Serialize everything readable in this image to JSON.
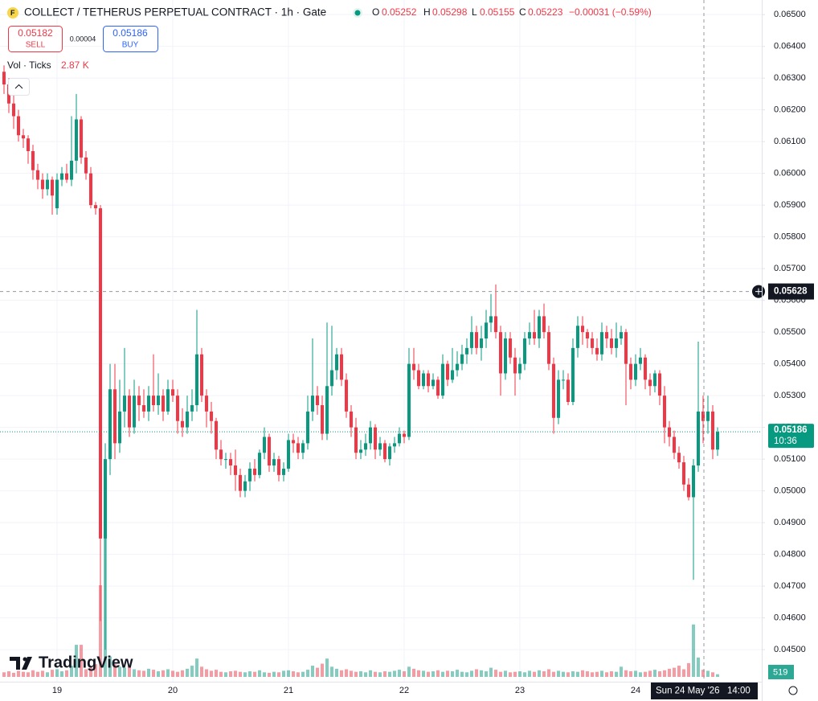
{
  "chart_data": {
    "type": "candlestick",
    "title": "COLLECT / TETHERUS PERPETUAL CONTRACT · 1h · Gate",
    "categories": [
      null,
      null,
      null,
      null,
      null,
      null,
      null,
      null,
      null,
      null,
      null,
      "19",
      null,
      null,
      null,
      null,
      null,
      null,
      null,
      null,
      null,
      null,
      null,
      null,
      null,
      null,
      null,
      null,
      null,
      null,
      null,
      null,
      null,
      null,
      null,
      "20",
      null,
      null,
      null,
      null,
      null,
      null,
      null,
      null,
      null,
      null,
      null,
      null,
      null,
      null,
      null,
      null,
      null,
      null,
      null,
      null,
      null,
      null,
      null,
      "21",
      null,
      null,
      null,
      null,
      null,
      null,
      null,
      null,
      null,
      null,
      null,
      null,
      null,
      null,
      null,
      null,
      null,
      null,
      null,
      null,
      null,
      null,
      null,
      "22",
      null,
      null,
      null,
      null,
      null,
      null,
      null,
      null,
      null,
      null,
      null,
      null,
      null,
      null,
      null,
      null,
      null,
      null,
      null,
      null,
      null,
      null,
      null,
      "23",
      null,
      null,
      null,
      null,
      null,
      null,
      null,
      null,
      null,
      null,
      null,
      null,
      null,
      null,
      null,
      null,
      null,
      null,
      null,
      null,
      null,
      null,
      null,
      "24",
      null,
      null,
      null,
      null,
      null,
      null,
      null,
      null,
      null,
      null,
      null,
      null,
      null,
      null,
      null,
      null,
      null
    ],
    "open": [
      0.0632,
      0.0628,
      0.0622,
      0.0618,
      0.0612,
      0.0611,
      0.0607,
      0.0601,
      0.0598,
      0.0595,
      0.0598,
      0.0589,
      0.0598,
      0.06,
      0.0598,
      0.0604,
      0.0617,
      0.0605,
      0.06,
      0.059,
      0.0589,
      0.0485,
      0.051,
      0.0532,
      0.0515,
      0.0525,
      0.053,
      0.052,
      0.053,
      0.0527,
      0.0525,
      0.053,
      0.0527,
      0.053,
      0.0525,
      0.0532,
      0.053,
      0.0522,
      0.052,
      0.0525,
      0.0527,
      0.0543,
      0.053,
      0.0525,
      0.0522,
      0.0513,
      0.051,
      0.051,
      0.0508,
      0.0505,
      0.05,
      0.0503,
      0.0507,
      0.0505,
      0.0512,
      0.0517,
      0.0508,
      0.051,
      0.0505,
      0.0507,
      0.0516,
      0.0515,
      0.0512,
      0.0515,
      0.0525,
      0.053,
      0.0527,
      0.0518,
      0.0533,
      0.0538,
      0.0543,
      0.0535,
      0.0525,
      0.052,
      0.0512,
      0.0513,
      0.0515,
      0.052,
      0.0513,
      0.0515,
      0.051,
      0.0514,
      0.0515,
      0.0518,
      0.0517,
      0.054,
      0.0538,
      0.0533,
      0.0537,
      0.0533,
      0.0535,
      0.053,
      0.054,
      0.0535,
      0.0538,
      0.054,
      0.0543,
      0.0545,
      0.055,
      0.0545,
      0.0548,
      0.0553,
      0.0555,
      0.055,
      0.0537,
      0.0548,
      0.0542,
      0.0537,
      0.054,
      0.0548,
      0.055,
      0.0548,
      0.0555,
      0.055,
      0.054,
      0.0523,
      0.0535,
      0.0535,
      0.0528,
      0.0545,
      0.0552,
      0.055,
      0.0548,
      0.0545,
      0.0543,
      0.055,
      0.0548,
      0.0545,
      0.0548,
      0.055,
      0.054,
      0.0535,
      0.054,
      0.0542,
      0.0535,
      0.0533,
      0.0537,
      0.053,
      0.052,
      0.0517,
      0.0512,
      0.0509,
      0.0502,
      0.0498,
      0.0508,
      0.0525,
      0.0522,
      0.0525,
      0.0513
    ],
    "high": [
      0.0634,
      0.063,
      0.0625,
      0.062,
      0.0614,
      0.0612,
      0.0609,
      0.0603,
      0.06,
      0.06,
      0.0599,
      0.06,
      0.0602,
      0.0603,
      0.0618,
      0.0625,
      0.0618,
      0.0607,
      0.0602,
      0.0591,
      0.059,
      0.0515,
      0.054,
      0.054,
      0.0535,
      0.0545,
      0.0532,
      0.0535,
      0.0533,
      0.0532,
      0.0533,
      0.0543,
      0.0537,
      0.0532,
      0.0535,
      0.0535,
      0.0532,
      0.0526,
      0.053,
      0.0532,
      0.0557,
      0.0545,
      0.0532,
      0.0528,
      0.0523,
      0.0516,
      0.0512,
      0.0512,
      0.0513,
      0.0507,
      0.0505,
      0.0509,
      0.051,
      0.0513,
      0.052,
      0.0518,
      0.0512,
      0.0511,
      0.0509,
      0.0518,
      0.0518,
      0.0517,
      0.0516,
      0.053,
      0.0548,
      0.0533,
      0.053,
      0.0553,
      0.0552,
      0.0545,
      0.0545,
      0.0537,
      0.0527,
      0.0523,
      0.0516,
      0.0518,
      0.0522,
      0.0521,
      0.0517,
      0.0516,
      0.0515,
      0.0517,
      0.052,
      0.0519,
      0.0545,
      0.0545,
      0.054,
      0.0538,
      0.0538,
      0.0537,
      0.0536,
      0.0543,
      0.0541,
      0.0545,
      0.0544,
      0.0546,
      0.0548,
      0.0555,
      0.0552,
      0.0552,
      0.0557,
      0.0562,
      0.0565,
      0.0552,
      0.055,
      0.055,
      0.0545,
      0.0542,
      0.055,
      0.0553,
      0.0557,
      0.0557,
      0.0559,
      0.0552,
      0.0542,
      0.0538,
      0.0538,
      0.0537,
      0.0548,
      0.0555,
      0.0555,
      0.0551,
      0.055,
      0.0548,
      0.0553,
      0.0552,
      0.0551,
      0.0553,
      0.0552,
      0.0551,
      0.0542,
      0.0543,
      0.0545,
      0.0543,
      0.0537,
      0.0538,
      0.0538,
      0.0533,
      0.0522,
      0.0519,
      0.0514,
      0.0511,
      0.0504,
      0.051,
      0.0547,
      0.053,
      0.053,
      0.0527,
      0.052
    ],
    "low": [
      0.0625,
      0.0619,
      0.0614,
      0.061,
      0.0608,
      0.0603,
      0.0598,
      0.0595,
      0.0592,
      0.0593,
      0.0587,
      0.0587,
      0.0596,
      0.0597,
      0.0596,
      0.06,
      0.0603,
      0.0598,
      0.0589,
      0.0587,
      0.0459,
      0.045,
      0.0505,
      0.051,
      0.0512,
      0.052,
      0.0517,
      0.0518,
      0.0522,
      0.0523,
      0.0522,
      0.0525,
      0.0524,
      0.0522,
      0.0524,
      0.0528,
      0.0518,
      0.0517,
      0.0518,
      0.0522,
      0.0525,
      0.0528,
      0.052,
      0.0518,
      0.051,
      0.0508,
      0.0507,
      0.0505,
      0.05,
      0.0498,
      0.0498,
      0.05,
      0.0503,
      0.0504,
      0.051,
      0.0506,
      0.0506,
      0.0503,
      0.0503,
      0.0506,
      0.0512,
      0.051,
      0.051,
      0.0513,
      0.0522,
      0.0524,
      0.0516,
      0.0516,
      0.053,
      0.0535,
      0.0533,
      0.0523,
      0.0517,
      0.051,
      0.051,
      0.0511,
      0.0513,
      0.051,
      0.0511,
      0.0509,
      0.0508,
      0.0512,
      0.0514,
      0.0515,
      0.0516,
      0.0535,
      0.0532,
      0.0532,
      0.0531,
      0.0532,
      0.0529,
      0.0529,
      0.0533,
      0.0534,
      0.0536,
      0.0538,
      0.054,
      0.0543,
      0.0543,
      0.0541,
      0.0545,
      0.055,
      0.0548,
      0.053,
      0.0535,
      0.054,
      0.053,
      0.0535,
      0.0538,
      0.0546,
      0.0546,
      0.0545,
      0.0548,
      0.0538,
      0.0518,
      0.0521,
      0.0532,
      0.0527,
      0.0527,
      0.0542,
      0.0546,
      0.0545,
      0.0543,
      0.0541,
      0.0541,
      0.0545,
      0.0543,
      0.0542,
      0.0546,
      0.0527,
      0.0532,
      0.0533,
      0.0538,
      0.0532,
      0.053,
      0.0531,
      0.0527,
      0.0515,
      0.0514,
      0.051,
      0.0507,
      0.05,
      0.0497,
      0.0472,
      0.0506,
      0.0515,
      0.0518,
      0.051,
      0.0511
    ],
    "close": [
      0.0628,
      0.0622,
      0.0618,
      0.0612,
      0.0611,
      0.0607,
      0.0601,
      0.0598,
      0.0595,
      0.0598,
      0.0593,
      0.0598,
      0.06,
      0.0598,
      0.0604,
      0.0617,
      0.0605,
      0.06,
      0.059,
      0.0589,
      0.0485,
      0.051,
      0.0532,
      0.0515,
      0.0525,
      0.053,
      0.052,
      0.053,
      0.0527,
      0.0525,
      0.053,
      0.0527,
      0.053,
      0.0525,
      0.0532,
      0.053,
      0.0522,
      0.052,
      0.0525,
      0.0527,
      0.0543,
      0.053,
      0.0525,
      0.0522,
      0.0513,
      0.051,
      0.051,
      0.0508,
      0.0505,
      0.05,
      0.0503,
      0.0507,
      0.0505,
      0.0512,
      0.0517,
      0.0508,
      0.051,
      0.0505,
      0.0507,
      0.0516,
      0.0515,
      0.0512,
      0.0515,
      0.0525,
      0.053,
      0.0527,
      0.0518,
      0.0533,
      0.0538,
      0.0543,
      0.0535,
      0.0525,
      0.052,
      0.0512,
      0.0513,
      0.0515,
      0.052,
      0.0513,
      0.0515,
      0.051,
      0.0514,
      0.0515,
      0.0518,
      0.0517,
      0.054,
      0.0538,
      0.0533,
      0.0537,
      0.0533,
      0.0535,
      0.053,
      0.054,
      0.0535,
      0.0538,
      0.054,
      0.0543,
      0.0545,
      0.055,
      0.0545,
      0.0548,
      0.0553,
      0.0555,
      0.055,
      0.0537,
      0.0548,
      0.0542,
      0.0537,
      0.054,
      0.0548,
      0.055,
      0.0548,
      0.0555,
      0.055,
      0.054,
      0.0523,
      0.0535,
      0.0535,
      0.0528,
      0.0545,
      0.0552,
      0.055,
      0.0548,
      0.0545,
      0.0543,
      0.055,
      0.0548,
      0.0545,
      0.0548,
      0.055,
      0.054,
      0.0535,
      0.054,
      0.0542,
      0.0535,
      0.0533,
      0.0537,
      0.053,
      0.052,
      0.0517,
      0.0512,
      0.0509,
      0.0502,
      0.0498,
      0.0508,
      0.0525,
      0.0522,
      0.0525,
      0.0513,
      0.05186
    ],
    "volume": [
      900,
      1100,
      800,
      1200,
      1000,
      900,
      1300,
      1000,
      1200,
      900,
      1400,
      1500,
      1100,
      1300,
      2200,
      6300,
      6300,
      1500,
      1800,
      2500,
      18000,
      28000,
      4000,
      2500,
      2000,
      1800,
      2200,
      1500,
      1300,
      1200,
      1600,
      1400,
      1100,
      1300,
      1500,
      1200,
      1000,
      1300,
      1600,
      2200,
      3600,
      2000,
      1500,
      1200,
      1400,
      1000,
      900,
      1100,
      1200,
      1000,
      900,
      1100,
      1000,
      1300,
      900,
      800,
      1000,
      900,
      1200,
      1300,
      1100,
      900,
      1000,
      1400,
      2200,
      1800,
      2600,
      3600,
      2000,
      1600,
      1300,
      1500,
      1200,
      1000,
      1100,
      900,
      1300,
      1000,
      900,
      1100,
      1000,
      1200,
      1400,
      1100,
      2000,
      1600,
      1300,
      1200,
      1000,
      1100,
      1300,
      1000,
      1200,
      1100,
      1400,
      1000,
      900,
      1200,
      1500,
      1300,
      1100,
      1800,
      1400,
      1000,
      1200,
      900,
      1000,
      1100,
      900,
      1200,
      1000,
      1300,
      1100,
      1500,
      1000,
      1200,
      1000,
      900,
      1100,
      1000,
      1300,
      1100,
      900,
      1000,
      1200,
      900,
      1100,
      1000,
      2000,
      1300,
      1100,
      1200,
      900,
      1000,
      1200,
      1400,
      1100,
      1300,
      1600,
      1800,
      2200,
      1500,
      2700,
      10300,
      3800,
      1400,
      1200,
      900,
      519
    ],
    "up_color": "#089981",
    "down_color": "#f23645",
    "ylim": [
      0.04399,
      0.06546
    ],
    "vlim": [
      0,
      30000
    ],
    "yticks": [
      {
        "value": 0.045,
        "label": "0.04500"
      },
      {
        "value": 0.046,
        "label": "0.04600"
      },
      {
        "value": 0.047,
        "label": "0.04700"
      },
      {
        "value": 0.048,
        "label": "0.04800"
      },
      {
        "value": 0.049,
        "label": "0.04900"
      },
      {
        "value": 0.05,
        "label": "0.05000"
      },
      {
        "value": 0.051,
        "label": "0.05100"
      },
      {
        "value": 0.052,
        "label": "0.05200"
      },
      {
        "value": 0.053,
        "label": "0.05300"
      },
      {
        "value": 0.054,
        "label": "0.05400"
      },
      {
        "value": 0.055,
        "label": "0.05500"
      },
      {
        "value": 0.056,
        "label": "0.05600"
      },
      {
        "value": 0.057,
        "label": "0.05700"
      },
      {
        "value": 0.058,
        "label": "0.05800"
      },
      {
        "value": 0.059,
        "label": "0.05900"
      },
      {
        "value": 0.06,
        "label": "0.06000"
      },
      {
        "value": 0.061,
        "label": "0.06100"
      },
      {
        "value": 0.062,
        "label": "0.06200"
      },
      {
        "value": 0.063,
        "label": "0.06300"
      },
      {
        "value": 0.064,
        "label": "0.06400"
      },
      {
        "value": 0.065,
        "label": "0.06500"
      }
    ],
    "grid": true,
    "crosshair": {
      "price": 0.05628,
      "date": "Sun 24 May '26",
      "time": "14:00"
    },
    "countdown": "10:36"
  },
  "legend": {
    "o_label": "O",
    "o": "0.05252",
    "h_label": "H",
    "h": "0.05298",
    "l_label": "L",
    "l": "0.05155",
    "c_label": "C",
    "c": "0.05223",
    "change": "−0.00031 (−0.59%)"
  },
  "trade": {
    "sell_price": "0.05182",
    "sell_label": "SELL",
    "spread": "0.00004",
    "buy_price": "0.05186",
    "buy_label": "BUY"
  },
  "volume_legend": {
    "label": "Vol · Ticks",
    "value": "2.87 K"
  },
  "branding": "TradingView"
}
